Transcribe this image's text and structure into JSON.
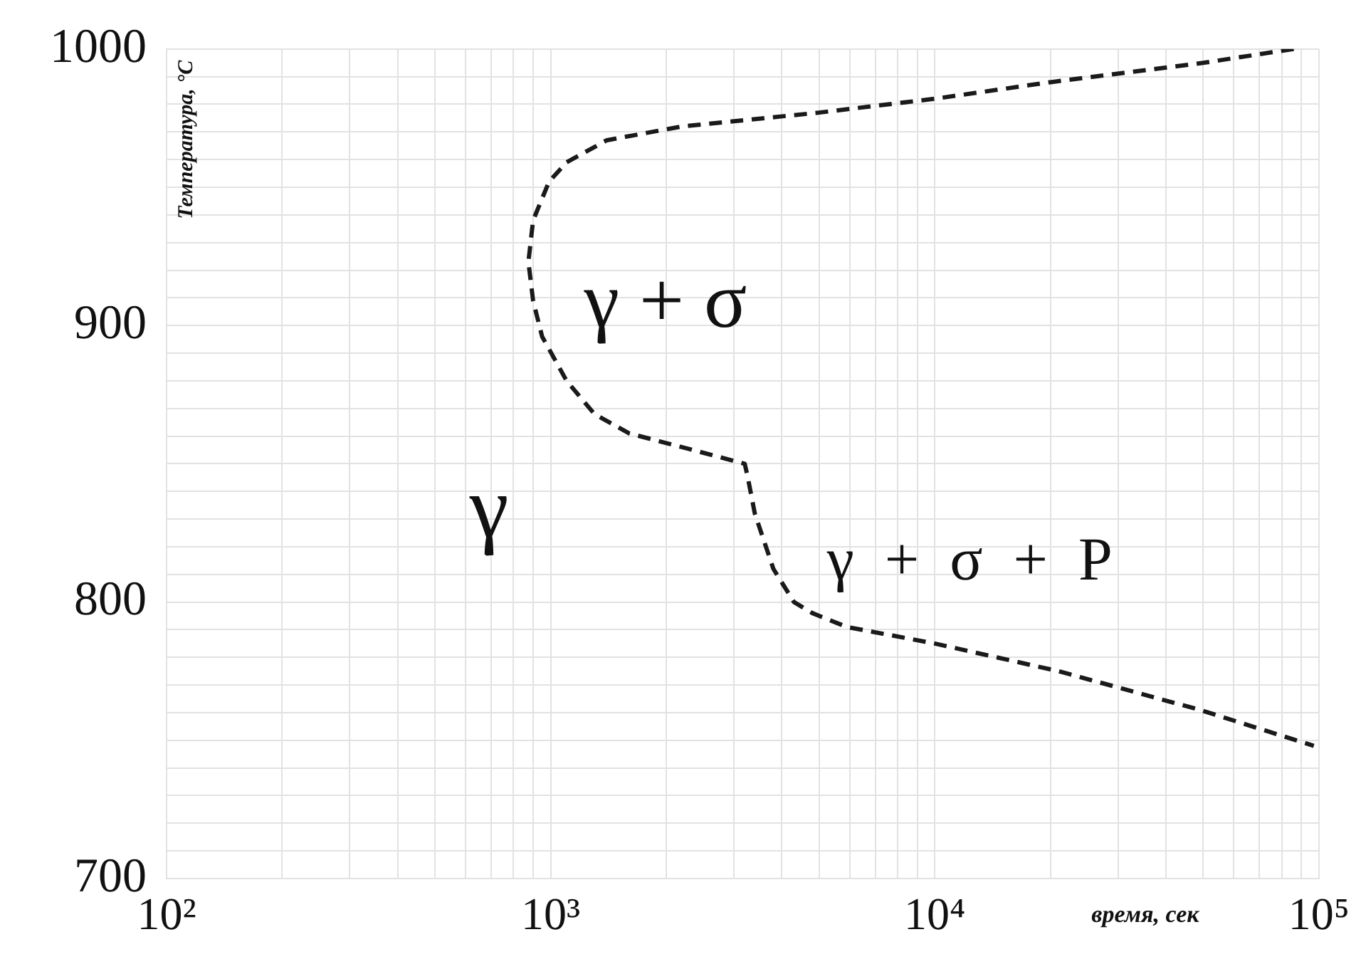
{
  "chart_data": {
    "type": "line",
    "xlabel": "время, сек",
    "ylabel": "Температура, °C",
    "log": "x",
    "grid": true,
    "marker": "none",
    "line_style": "dashed",
    "xlim": [
      100,
      100000
    ],
    "ylim": [
      700,
      1000
    ],
    "xticks": [
      {
        "value": 100,
        "label": "10²"
      },
      {
        "value": 200,
        "label": null
      },
      {
        "value": 300,
        "label": null
      },
      {
        "value": 400,
        "label": null
      },
      {
        "value": 500,
        "label": null
      },
      {
        "value": 600,
        "label": null
      },
      {
        "value": 700,
        "label": null
      },
      {
        "value": 800,
        "label": null
      },
      {
        "value": 900,
        "label": null
      },
      {
        "value": 1000,
        "label": "10³"
      },
      {
        "value": 2000,
        "label": null
      },
      {
        "value": 3000,
        "label": null
      },
      {
        "value": 4000,
        "label": null
      },
      {
        "value": 5000,
        "label": null
      },
      {
        "value": 6000,
        "label": null
      },
      {
        "value": 7000,
        "label": null
      },
      {
        "value": 8000,
        "label": null
      },
      {
        "value": 9000,
        "label": null
      },
      {
        "value": 10000,
        "label": "10⁴"
      },
      {
        "value": 20000,
        "label": null
      },
      {
        "value": 30000,
        "label": null
      },
      {
        "value": 40000,
        "label": null
      },
      {
        "value": 50000,
        "label": null
      },
      {
        "value": 60000,
        "label": null
      },
      {
        "value": 70000,
        "label": null
      },
      {
        "value": 80000,
        "label": null
      },
      {
        "value": 90000,
        "label": null
      },
      {
        "value": 100000,
        "label": "10⁵"
      }
    ],
    "yticks": [
      700,
      {
        "value": 710,
        "label": null
      },
      {
        "value": 720,
        "label": null
      },
      {
        "value": 730,
        "label": null
      },
      {
        "value": 740,
        "label": null
      },
      {
        "value": 750,
        "label": null
      },
      {
        "value": 760,
        "label": null
      },
      {
        "value": 770,
        "label": null
      },
      {
        "value": 780,
        "label": null
      },
      {
        "value": 790,
        "label": null
      },
      800,
      {
        "value": 810,
        "label": null
      },
      {
        "value": 820,
        "label": null
      },
      {
        "value": 830,
        "label": null
      },
      {
        "value": 840,
        "label": null
      },
      {
        "value": 850,
        "label": null
      },
      {
        "value": 860,
        "label": null
      },
      {
        "value": 870,
        "label": null
      },
      {
        "value": 880,
        "label": null
      },
      {
        "value": 890,
        "label": null
      },
      900,
      {
        "value": 910,
        "label": null
      },
      {
        "value": 920,
        "label": null
      },
      {
        "value": 930,
        "label": null
      },
      {
        "value": 940,
        "label": null
      },
      {
        "value": 950,
        "label": null
      },
      {
        "value": 960,
        "label": null
      },
      {
        "value": 970,
        "label": null
      },
      {
        "value": 980,
        "label": null
      },
      {
        "value": 990,
        "label": null
      },
      1000
    ],
    "series": [
      {
        "color": "#1a1a1a",
        "x": [
          86000,
          50000,
          20000,
          10000,
          5000,
          2200,
          1400,
          1100,
          990,
          900,
          875,
          900,
          950,
          1100,
          1300,
          1600,
          2200,
          3200,
          3250,
          3400,
          3800,
          4300,
          4800,
          5900,
          10000,
          21000,
          49000,
          97000
        ],
        "values": [
          1000,
          995,
          988,
          982,
          977,
          972,
          967,
          959,
          952,
          938,
          923,
          909,
          896,
          880,
          868,
          861,
          856,
          850,
          846,
          832,
          812,
          800,
          796,
          791,
          785,
          775,
          761,
          748
        ]
      }
    ],
    "annotations": [
      "γ + σ",
      "γ",
      "γ  +  σ  +  P"
    ]
  }
}
